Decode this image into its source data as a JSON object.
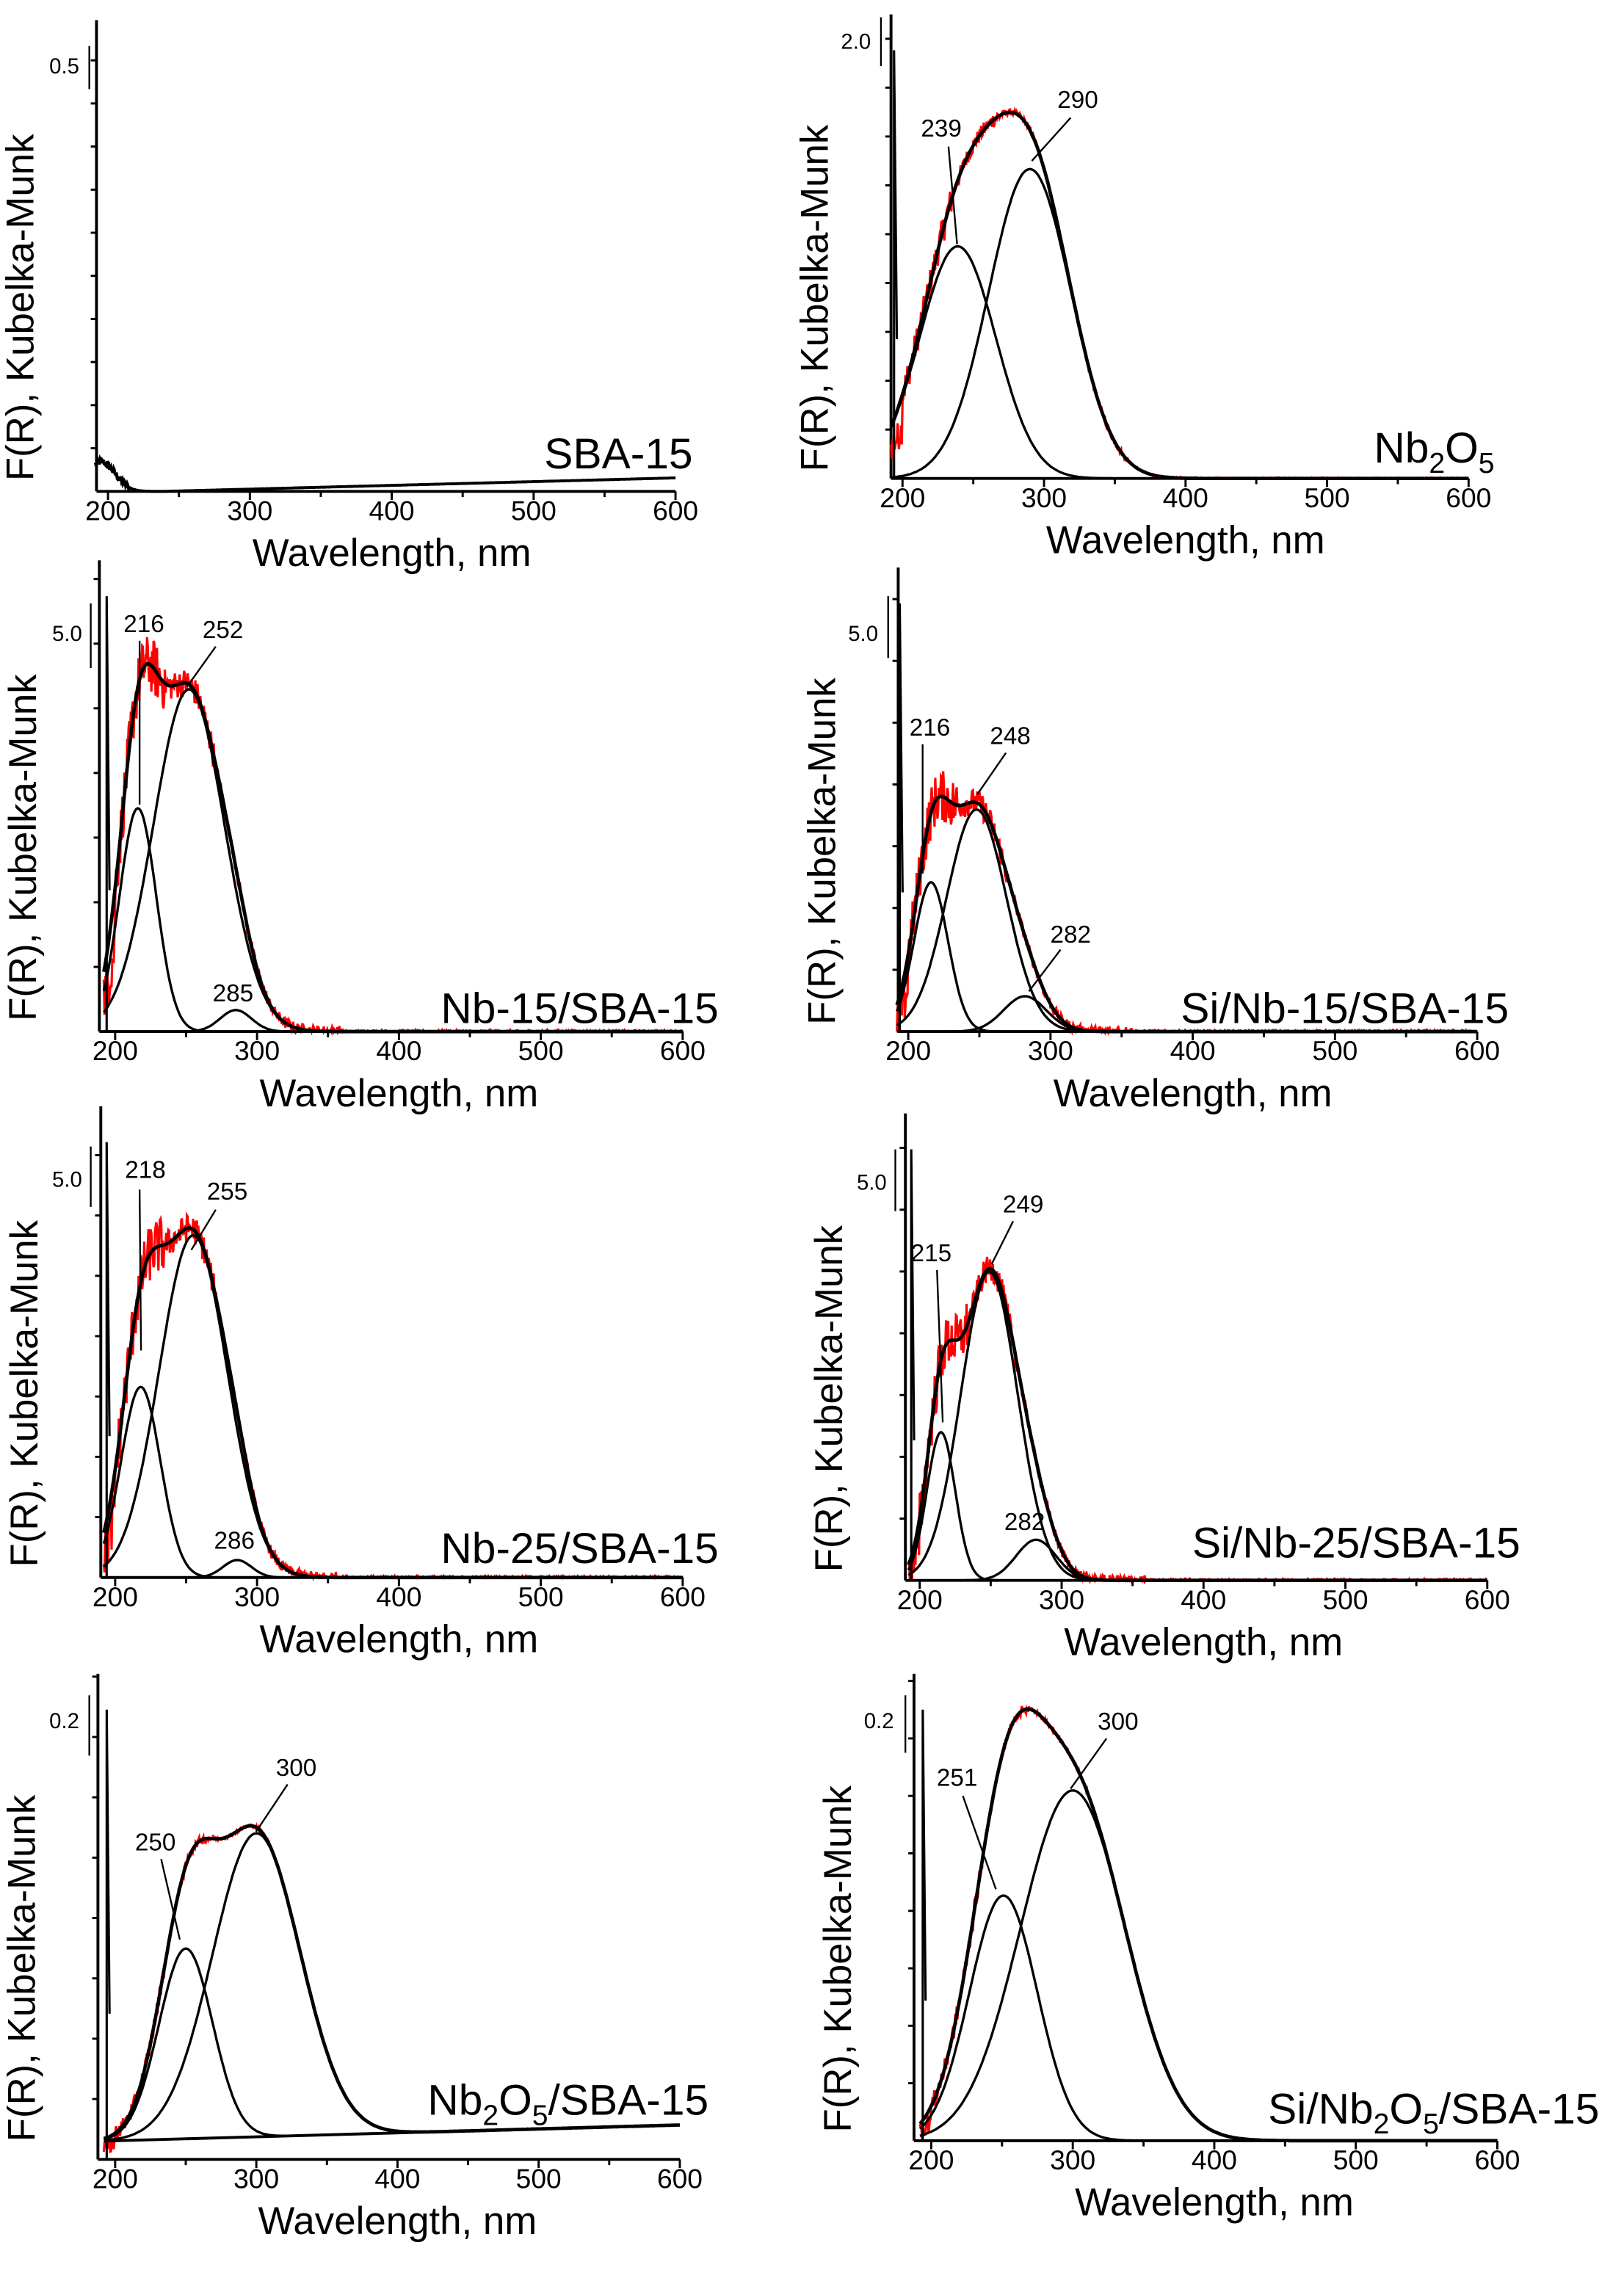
{
  "chart_data": [
    {
      "type": "line",
      "sample_parts": [
        {
          "t": "SBA-15"
        }
      ],
      "xlabel": "Wavelength, nm",
      "ylabel": "F(R), Kubelka-Munk",
      "x_ticks": [
        "200",
        "300",
        "400",
        "500",
        "600"
      ],
      "xlim": [
        190,
        600
      ],
      "ylim": [
        0,
        3.5
      ],
      "scale_bar": "0.5",
      "scale_bar_value": 0.5,
      "peaks": [
        {
          "center": 195,
          "amp": 0.22,
          "sigma": 10
        }
      ],
      "baseline": [
        [
          240,
          0
        ],
        [
          600,
          0.1
        ]
      ],
      "peak_labels": [],
      "has_experimental": false,
      "noise": 0.03
    },
    {
      "type": "line",
      "sample_parts": [
        {
          "t": "Nb"
        },
        {
          "t": "2",
          "sub": true
        },
        {
          "t": "O"
        },
        {
          "t": "5",
          "sub": true
        }
      ],
      "xlabel": "Wavelength, nm",
      "ylabel": "F(R), Kubelka-Munk",
      "x_ticks": [
        "200",
        "300",
        "400",
        "500",
        "600"
      ],
      "xlim": [
        190,
        600
      ],
      "ylim": [
        0,
        18
      ],
      "scale_bar": "2.0",
      "scale_bar_value": 2.0,
      "peaks": [
        {
          "center": 239,
          "amp": 9,
          "sigma": 27
        },
        {
          "center": 290,
          "amp": 12,
          "sigma": 29
        }
      ],
      "baseline": [
        [
          190,
          0
        ],
        [
          600,
          0
        ]
      ],
      "peak_labels": [
        "239",
        "290"
      ],
      "has_experimental": true,
      "noise": 0.6
    },
    {
      "type": "line",
      "sample_parts": [
        {
          "t": "Nb-15/SBA-15"
        }
      ],
      "xlabel": "Wavelength, nm",
      "ylabel": "F(R), Kubelka-Munk",
      "x_ticks": [
        "200",
        "300",
        "400",
        "500",
        "600"
      ],
      "xlim": [
        190,
        600
      ],
      "ylim": [
        0,
        23
      ],
      "scale_bar": "5.0",
      "scale_bar_value": 5.0,
      "peaks": [
        {
          "center": 216,
          "amp": 10.9,
          "sigma": 13
        },
        {
          "center": 252,
          "amp": 16.7,
          "sigma": 25
        },
        {
          "center": 285,
          "amp": 1.05,
          "sigma": 11
        }
      ],
      "baseline": [
        [
          190,
          0
        ],
        [
          600,
          0
        ]
      ],
      "peak_labels": [
        "216",
        "252",
        "285"
      ],
      "has_experimental": true,
      "noise": 1.4
    },
    {
      "type": "line",
      "sample_parts": [
        {
          "t": "Si/Nb-15/SBA-15"
        }
      ],
      "xlabel": "Wavelength, nm",
      "ylabel": "F(R), Kubelka-Munk",
      "x_ticks": [
        "200",
        "300",
        "400",
        "500",
        "600"
      ],
      "xlim": [
        190,
        600
      ],
      "ylim": [
        0,
        23
      ],
      "scale_bar": "5.0",
      "scale_bar_value": 5.0,
      "peaks": [
        {
          "center": 216,
          "amp": 7.4,
          "sigma": 12
        },
        {
          "center": 248,
          "amp": 11,
          "sigma": 21
        },
        {
          "center": 282,
          "amp": 1.75,
          "sigma": 15
        }
      ],
      "baseline": [
        [
          190,
          0
        ],
        [
          600,
          0
        ]
      ],
      "peak_labels": [
        "216",
        "248",
        "282"
      ],
      "has_experimental": true,
      "noise": 1.3
    },
    {
      "type": "line",
      "sample_parts": [
        {
          "t": "Nb-25/SBA-15"
        }
      ],
      "xlabel": "Wavelength, nm",
      "ylabel": "F(R), Kubelka-Munk",
      "x_ticks": [
        "200",
        "300",
        "400",
        "500",
        "600"
      ],
      "xlim": [
        190,
        600
      ],
      "ylim": [
        0,
        23
      ],
      "scale_bar": "5.0",
      "scale_bar_value": 5.0,
      "peaks": [
        {
          "center": 218,
          "amp": 9.3,
          "sigma": 14
        },
        {
          "center": 255,
          "amp": 16.7,
          "sigma": 24
        },
        {
          "center": 286,
          "amp": 0.85,
          "sigma": 10
        }
      ],
      "baseline": [
        [
          190,
          0
        ],
        [
          600,
          0
        ]
      ],
      "peak_labels": [
        "218",
        "255",
        "286"
      ],
      "has_experimental": true,
      "noise": 1.4
    },
    {
      "type": "line",
      "sample_parts": [
        {
          "t": "Si/Nb-25/SBA-15"
        }
      ],
      "xlabel": "Wavelength, nm",
      "ylabel": "F(R), Kubelka-Munk",
      "x_ticks": [
        "200",
        "300",
        "400",
        "500",
        "600"
      ],
      "xlim": [
        190,
        600
      ],
      "ylim": [
        0,
        23
      ],
      "scale_bar": "5.0",
      "scale_bar_value": 5.0,
      "peaks": [
        {
          "center": 215,
          "amp": 7.3,
          "sigma": 10
        },
        {
          "center": 249,
          "amp": 15.2,
          "sigma": 20
        },
        {
          "center": 282,
          "amp": 2.0,
          "sigma": 14
        }
      ],
      "baseline": [
        [
          190,
          0
        ],
        [
          600,
          0
        ]
      ],
      "peak_labels": [
        "215",
        "249",
        "282"
      ],
      "has_experimental": true,
      "noise": 1.3
    },
    {
      "type": "line",
      "sample_parts": [
        {
          "t": "Nb"
        },
        {
          "t": "2",
          "sub": true
        },
        {
          "t": "O"
        },
        {
          "t": "5",
          "sub": true
        },
        {
          "t": "/SBA-15"
        }
      ],
      "xlabel": "Wavelength, nm",
      "ylabel": "F(R), Kubelka-Munk",
      "x_ticks": [
        "200",
        "300",
        "400",
        "500",
        "600"
      ],
      "xlim": [
        190,
        600
      ],
      "ylim": [
        0,
        1.2
      ],
      "scale_bar": "0.2",
      "scale_bar_value": 0.2,
      "peaks": [
        {
          "center": 250,
          "amp": 0.47,
          "sigma": 19
        },
        {
          "center": 300,
          "amp": 0.75,
          "sigma": 31
        }
      ],
      "baseline": [
        [
          190,
          0.045
        ],
        [
          600,
          0.085
        ]
      ],
      "peak_labels": [
        "250",
        "300"
      ],
      "has_experimental": true,
      "noise": 0.02
    },
    {
      "type": "line",
      "sample_parts": [
        {
          "t": "Si/Nb"
        },
        {
          "t": "2",
          "sub": true
        },
        {
          "t": "O"
        },
        {
          "t": "5",
          "sub": true
        },
        {
          "t": "/SBA-15"
        }
      ],
      "xlabel": "Wavelength, nm",
      "ylabel": "F(R), Kubelka-Munk",
      "x_ticks": [
        "200",
        "300",
        "400",
        "500",
        "600"
      ],
      "xlim": [
        190,
        600
      ],
      "ylim": [
        0,
        1.2
      ],
      "scale_bar": "0.2",
      "scale_bar_value": 0.2,
      "peaks": [
        {
          "center": 251,
          "amp": 0.63,
          "sigma": 24
        },
        {
          "center": 300,
          "amp": 0.9,
          "sigma": 37
        }
      ],
      "baseline": [
        [
          190,
          0
        ],
        [
          600,
          0
        ]
      ],
      "peak_labels": [
        "251",
        "300"
      ],
      "has_experimental": true,
      "noise": 0.025
    }
  ],
  "colors": {
    "experimental": "#ff0000",
    "fit": "#000000"
  }
}
